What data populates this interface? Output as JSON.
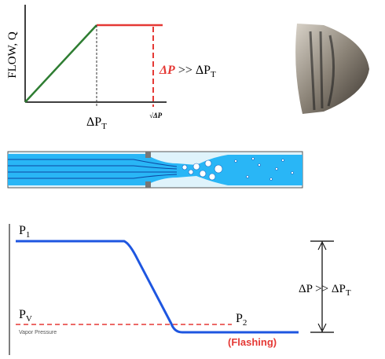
{
  "flow_chart": {
    "y_label": "FLOW, Q",
    "x_tick": {
      "text": "ΔP",
      "sub": "T"
    },
    "x_end": "√ΔP",
    "annotation": {
      "red": "ΔP",
      "rest": " >> ΔP",
      "sub": "T"
    }
  },
  "pressure_profile": {
    "p1": {
      "text": "P",
      "sub": "1"
    },
    "pv": {
      "text": "P",
      "sub": "V"
    },
    "pv_caption": "Vapor Pressure",
    "p2": {
      "text": "P",
      "sub": "2"
    },
    "flashing": "(Flashing)",
    "delta": {
      "text": "ΔP >> ΔP",
      "sub": "T"
    }
  }
}
